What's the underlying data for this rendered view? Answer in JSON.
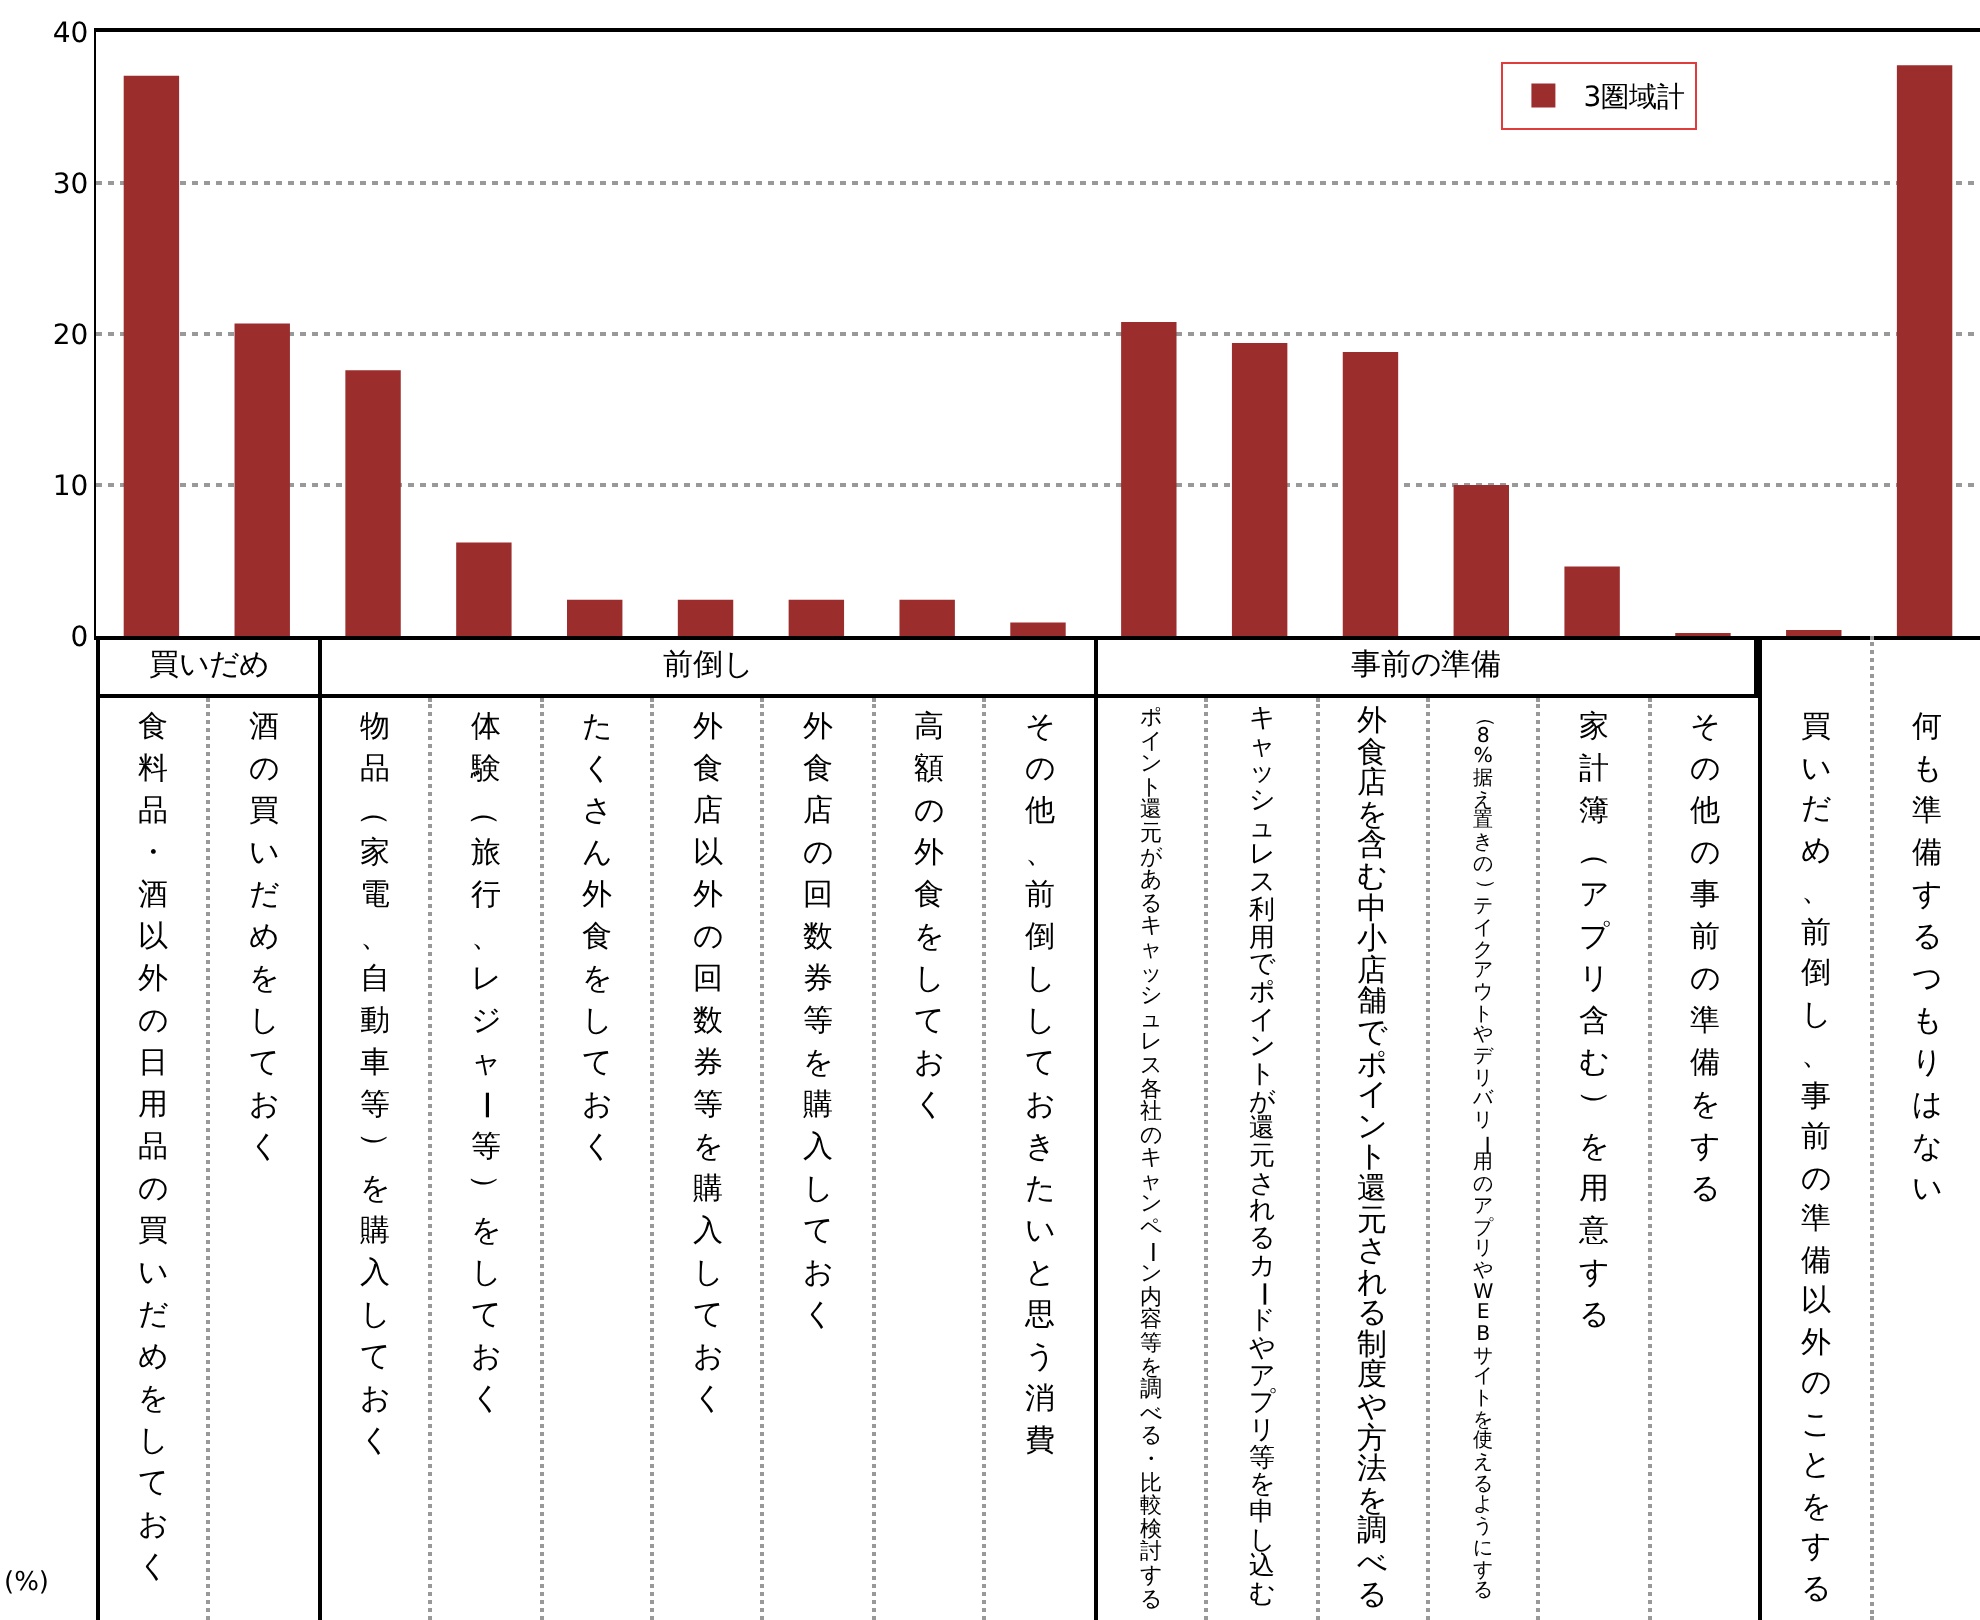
{
  "chart_data": {
    "type": "bar",
    "categories": [
      "食料品・酒以外の日用品の買いだめをしておく",
      "酒の買いだめをしておく",
      "物品（家電、自動車等）を購入しておく",
      "体験（旅行、レジャー等）をしておく",
      "たくさん外食をしておく",
      "外食店以外の回数券等を購入しておく",
      "外食店の回数券等を購入しておく",
      "高額の外食をしておく",
      "その他、前倒ししておきたいと思う消費",
      "ポイント還元があるキャッシュレス各社のキャンペーン内容等を調べる・比較検討する",
      "キャッシュレス利用でポイントが還元されるカードやアプリ等を申し込む",
      "外食店を含む中小店舗でポイント還元される制度や方法を調べる",
      "（8%据え置きの）テイクアウトやデリバリー用のアプリやWEBサイトを使えるようにする",
      "家計簿（アプリ含む）を用意する",
      "その他の事前の準備をする",
      "買いだめ、前倒し、事前の準備以外のことをする",
      "何も準備するつもりはない"
    ],
    "series": [
      {
        "name": "3圏域計",
        "color": "#9b2d2d",
        "values": [
          37.1,
          20.7,
          17.6,
          6.2,
          2.4,
          2.4,
          2.4,
          2.4,
          0.9,
          20.8,
          19.4,
          18.8,
          10.0,
          4.6,
          0.2,
          0.4,
          37.8
        ]
      }
    ],
    "annotations": [
      "買いだめ",
      "前倒し",
      "事前の準備",
      "(%)"
    ],
    "ylim": [
      0,
      40
    ],
    "yticks": [
      0,
      10,
      20,
      30,
      40
    ],
    "grid": "y",
    "legend": "top right"
  }
}
